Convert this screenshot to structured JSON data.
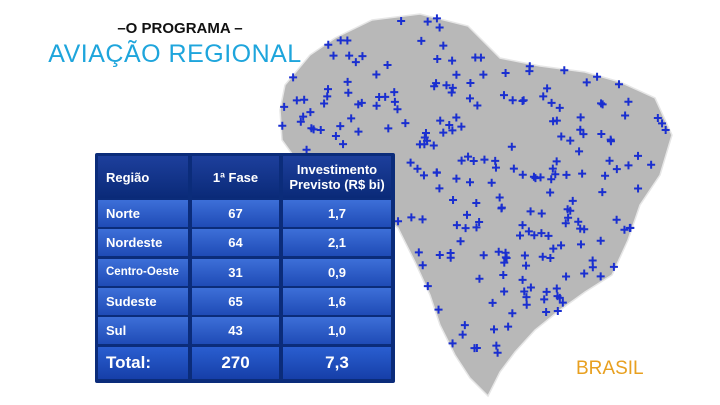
{
  "header": {
    "kicker": "–O PROGRAMA –",
    "title": "AVIAÇÃO REGIONAL"
  },
  "table": {
    "columns": [
      "Região",
      "1ª Fase",
      "Investimento Previsto (R$ bi)"
    ],
    "rows": [
      [
        "Norte",
        "67",
        "1,7"
      ],
      [
        "Nordeste",
        "64",
        "2,1"
      ],
      [
        "Centro-Oeste",
        "31",
        "0,9"
      ],
      [
        "Sudeste",
        "65",
        "1,6"
      ],
      [
        "Sul",
        "43",
        "1,0"
      ]
    ],
    "total": [
      "Total:",
      "270",
      "7,3"
    ]
  },
  "map": {
    "label": "BRASIL"
  }
}
